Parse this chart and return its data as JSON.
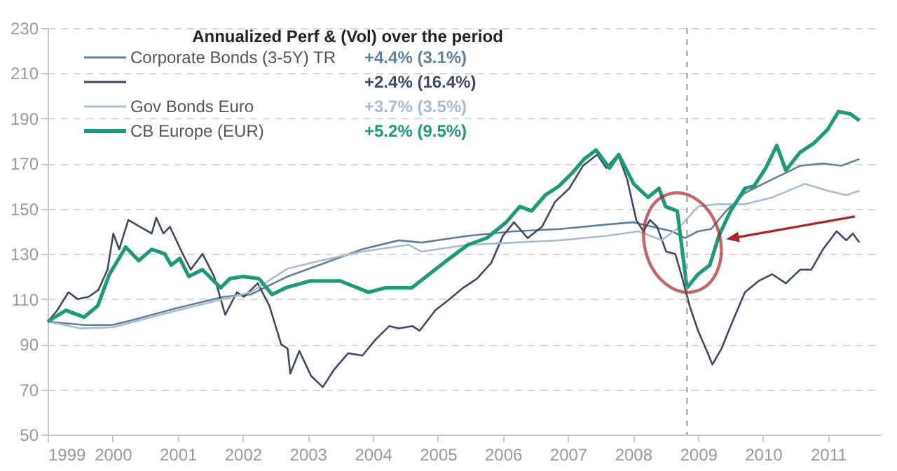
{
  "chart_data": {
    "type": "line",
    "title": "Annualized Perf & (Vol) over the period",
    "xlim": [
      1999,
      2011.8
    ],
    "xticks": [
      1999,
      2000,
      2001,
      2002,
      2003,
      2004,
      2005,
      2006,
      2007,
      2008,
      2009,
      2010,
      2011
    ],
    "ylim": [
      50,
      230
    ],
    "yticks": [
      50,
      70,
      90,
      110,
      130,
      150,
      170,
      190,
      210,
      230
    ],
    "grid": "y",
    "legend": "top left",
    "annotations": [
      "+4.4% (3.1%)",
      "+2.4% (16.4%)",
      "+3.7% (3.5%)",
      "+5.2% (9.5%)"
    ],
    "ref_lines": [
      {
        "axis": "x",
        "value": 2008.83,
        "label": null,
        "color": "#9a9a9a",
        "line_style": "dashed"
      }
    ],
    "series": [
      {
        "name": "Corporate Bonds (3-5Y) TR",
        "color": "#5f7f9f",
        "x": [
          1999,
          1999.57,
          1999.99,
          2000.28,
          2000.99,
          2001.7,
          2002.12,
          2002.69,
          2003.12,
          2003.83,
          2004.4,
          2004.75,
          2005.46,
          2006.17,
          2006.88,
          2007.59,
          2008.0,
          2008.3,
          2008.6,
          2008.8,
          2009.0,
          2009.2,
          2009.43,
          2009.72,
          2010.14,
          2010.57,
          2010.92,
          2011.2,
          2011.48
        ],
        "values": [
          100,
          98.5,
          98.5,
          100.5,
          106,
          111,
          112,
          120,
          124.5,
          132,
          136,
          135,
          138,
          140,
          141,
          143,
          144,
          142,
          140,
          137,
          140,
          141,
          149,
          157,
          163,
          169,
          170,
          169,
          172
        ]
      },
      {
        "name": null,
        "color": "#3d4a62",
        "x": [
          1999,
          1999.14,
          1999.32,
          1999.46,
          1999.63,
          1999.78,
          1999.92,
          2000.01,
          2000.1,
          2000.24,
          2000.42,
          2000.6,
          2000.67,
          2000.78,
          2000.88,
          2001.06,
          2001.2,
          2001.38,
          2001.56,
          2001.73,
          2001.91,
          2002.02,
          2002.23,
          2002.41,
          2002.59,
          2002.69,
          2002.73,
          2002.87,
          2003.05,
          2003.23,
          2003.41,
          2003.62,
          2003.84,
          2004.04,
          2004.25,
          2004.4,
          2004.61,
          2004.72,
          2004.96,
          2005.18,
          2005.39,
          2005.6,
          2005.82,
          2006.0,
          2006.17,
          2006.38,
          2006.6,
          2006.8,
          2007.02,
          2007.23,
          2007.45,
          2007.59,
          2007.77,
          2007.91,
          2008.05,
          2008.16,
          2008.26,
          2008.37,
          2008.51,
          2008.65,
          2008.76,
          2008.87,
          2009.0,
          2009.15,
          2009.22,
          2009.36,
          2009.5,
          2009.72,
          2009.93,
          2010.14,
          2010.35,
          2010.57,
          2010.74,
          2010.92,
          2011.13,
          2011.28,
          2011.38,
          2011.48
        ],
        "values": [
          100,
          104.7,
          113,
          110,
          111,
          114,
          123,
          139,
          132,
          145,
          142,
          139,
          146,
          139,
          142,
          131,
          123,
          130,
          120,
          103,
          113,
          111,
          117,
          107,
          90,
          88,
          77,
          87,
          76,
          71,
          79,
          86,
          85,
          92,
          98,
          97,
          98,
          96,
          105,
          110,
          115,
          119,
          126,
          138,
          144,
          137,
          142,
          153,
          159,
          169,
          174,
          168,
          174,
          163,
          145,
          140,
          145,
          142,
          131,
          130,
          119,
          107,
          96,
          86,
          81,
          88,
          98,
          113,
          118,
          121,
          117,
          123,
          123,
          132,
          140,
          136,
          139,
          135
        ]
      },
      {
        "name": "Gov Bonds Euro",
        "color": "#a9bccf",
        "x": [
          1999,
          1999.5,
          2000,
          2001,
          2001.7,
          2002.12,
          2002.69,
          2003.12,
          2003.83,
          2004.55,
          2004.75,
          2005.46,
          2006.17,
          2006.88,
          2007.59,
          2008.09,
          2008.44,
          2008.72,
          2009.0,
          2009.29,
          2009.72,
          2010.14,
          2010.64,
          2010.99,
          2011.28,
          2011.48
        ],
        "values": [
          100,
          97,
          97.5,
          105,
          110,
          113,
          123.5,
          126.5,
          131,
          134,
          131,
          134,
          135,
          136,
          138,
          140,
          136,
          142,
          151,
          152,
          152,
          155,
          161,
          158,
          156,
          158
        ]
      },
      {
        "name": "CB Europe (EUR)",
        "color": "#1f9a78",
        "x": [
          1999,
          1999.28,
          1999.56,
          1999.77,
          1999.95,
          2000.2,
          2000.4,
          2000.6,
          2000.8,
          2000.9,
          2001.03,
          2001.17,
          2001.38,
          2001.66,
          2001.8,
          2002.0,
          2002.25,
          2002.45,
          2002.66,
          2003.03,
          2003.5,
          2003.93,
          2004.2,
          2004.6,
          2005.0,
          2005.18,
          2005.46,
          2005.75,
          2006.05,
          2006.26,
          2006.44,
          2006.65,
          2006.86,
          2007.07,
          2007.25,
          2007.43,
          2007.64,
          2007.78,
          2008.01,
          2008.23,
          2008.4,
          2008.5,
          2008.68,
          2008.83,
          2009.0,
          2009.18,
          2009.32,
          2009.5,
          2009.72,
          2009.86,
          2010.04,
          2010.21,
          2010.35,
          2010.57,
          2010.78,
          2010.99,
          2011.16,
          2011.34,
          2011.48
        ],
        "values": [
          100,
          105,
          102,
          107,
          121,
          133,
          127,
          132,
          130,
          125,
          128,
          120,
          123,
          115,
          119,
          120,
          119,
          112,
          115,
          118,
          118,
          113,
          115,
          115,
          124,
          128,
          134,
          137,
          144,
          151,
          149,
          156,
          160,
          166,
          172,
          176,
          168,
          174,
          161,
          155,
          159,
          151,
          149,
          115,
          121,
          125,
          138,
          149,
          159,
          160,
          168,
          178,
          167,
          175,
          179,
          185,
          193,
          192,
          189
        ]
      }
    ]
  }
}
